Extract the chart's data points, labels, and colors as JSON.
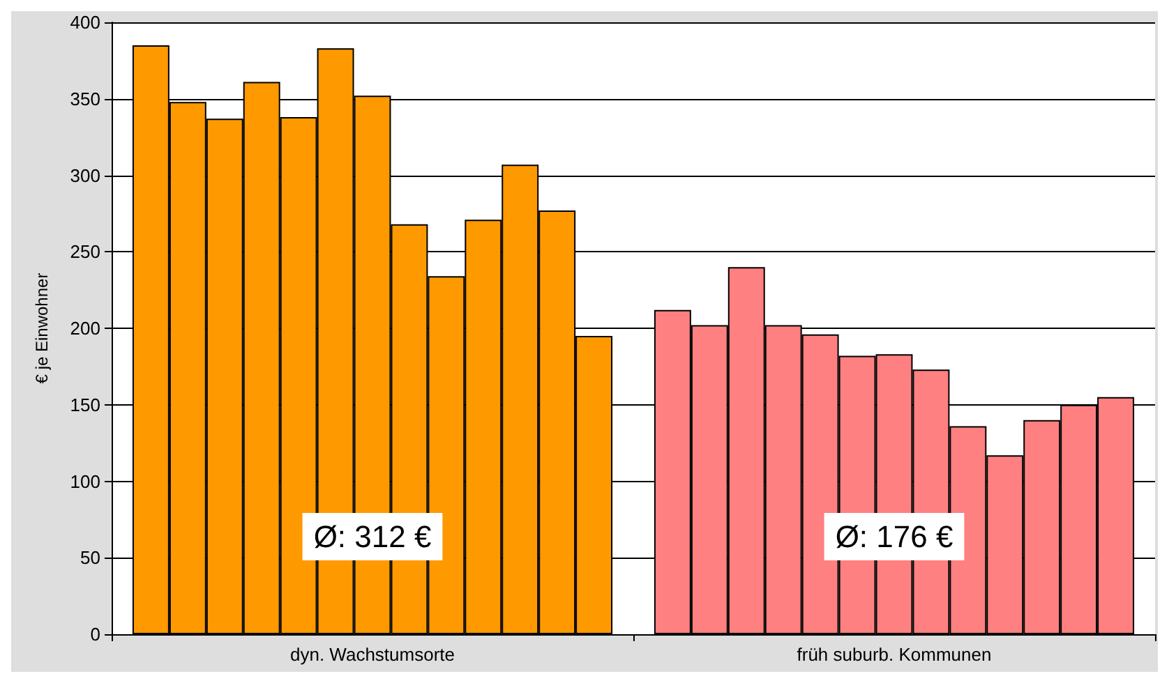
{
  "chart_data": {
    "type": "bar",
    "ylabel": "€ je Einwohner",
    "categories": [
      "dyn. Wachstumsorte",
      "früh suburb. Kommunen"
    ],
    "series": [
      {
        "colors": [
          "#ff9900",
          "#ff8080"
        ],
        "values": [
          385,
          212
        ]
      },
      {
        "colors": [
          "#ff9900",
          "#ff8080"
        ],
        "values": [
          348,
          202
        ]
      },
      {
        "colors": [
          "#ff9900",
          "#ff8080"
        ],
        "values": [
          337,
          240
        ]
      },
      {
        "colors": [
          "#ff9900",
          "#ff8080"
        ],
        "values": [
          361,
          202
        ]
      },
      {
        "colors": [
          "#ff9900",
          "#ff8080"
        ],
        "values": [
          338,
          196
        ]
      },
      {
        "colors": [
          "#ff9900",
          "#ff8080"
        ],
        "values": [
          383,
          182
        ]
      },
      {
        "colors": [
          "#ff9900",
          "#ff8080"
        ],
        "values": [
          352,
          183
        ]
      },
      {
        "colors": [
          "#ff9900",
          "#ff8080"
        ],
        "values": [
          268,
          173
        ]
      },
      {
        "colors": [
          "#ff9900",
          "#ff8080"
        ],
        "values": [
          234,
          136
        ]
      },
      {
        "colors": [
          "#ff9900",
          "#ff8080"
        ],
        "values": [
          271,
          117
        ]
      },
      {
        "colors": [
          "#ff9900",
          "#ff8080"
        ],
        "values": [
          307,
          140
        ]
      },
      {
        "colors": [
          "#ff9900",
          "#ff8080"
        ],
        "values": [
          277,
          150
        ]
      },
      {
        "colors": [
          "#ff9900",
          "#ff8080"
        ],
        "values": [
          195,
          155
        ]
      }
    ],
    "ylim": [
      0,
      400
    ],
    "yticks": [
      0,
      50,
      100,
      150,
      200,
      250,
      300,
      350,
      400
    ],
    "grid": "y",
    "annotations": [
      "Ø: 312 €",
      "Ø: 176 €"
    ]
  }
}
